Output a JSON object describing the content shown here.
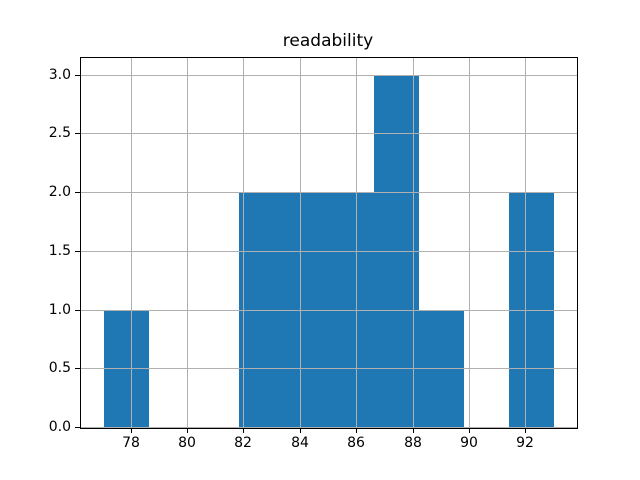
{
  "chart_data": {
    "type": "bar",
    "subtype": "histogram",
    "title": "readability",
    "xlabel": "",
    "ylabel": "",
    "bin_edges": [
      77.0,
      78.6,
      80.2,
      81.8,
      83.4,
      85.0,
      86.6,
      88.2,
      89.8,
      91.4,
      93.0
    ],
    "counts": [
      1,
      0,
      0,
      2,
      2,
      2,
      3,
      1,
      0,
      2
    ],
    "xtick_values": [
      78,
      80,
      82,
      84,
      86,
      88,
      90,
      92
    ],
    "xtick_labels": [
      "78",
      "80",
      "82",
      "84",
      "86",
      "88",
      "90",
      "92"
    ],
    "ytick_values": [
      0.0,
      0.5,
      1.0,
      1.5,
      2.0,
      2.5,
      3.0
    ],
    "ytick_labels": [
      "0.0",
      "0.5",
      "1.0",
      "1.5",
      "2.0",
      "2.5",
      "3.0"
    ],
    "xlim": [
      76.2,
      93.8
    ],
    "ylim": [
      0,
      3.15
    ],
    "grid": true,
    "legend": false,
    "colors": {
      "bar": "#1f77b4",
      "grid": "#b0b0b0",
      "spine": "#000000",
      "text": "#000000",
      "background": "#ffffff"
    }
  }
}
